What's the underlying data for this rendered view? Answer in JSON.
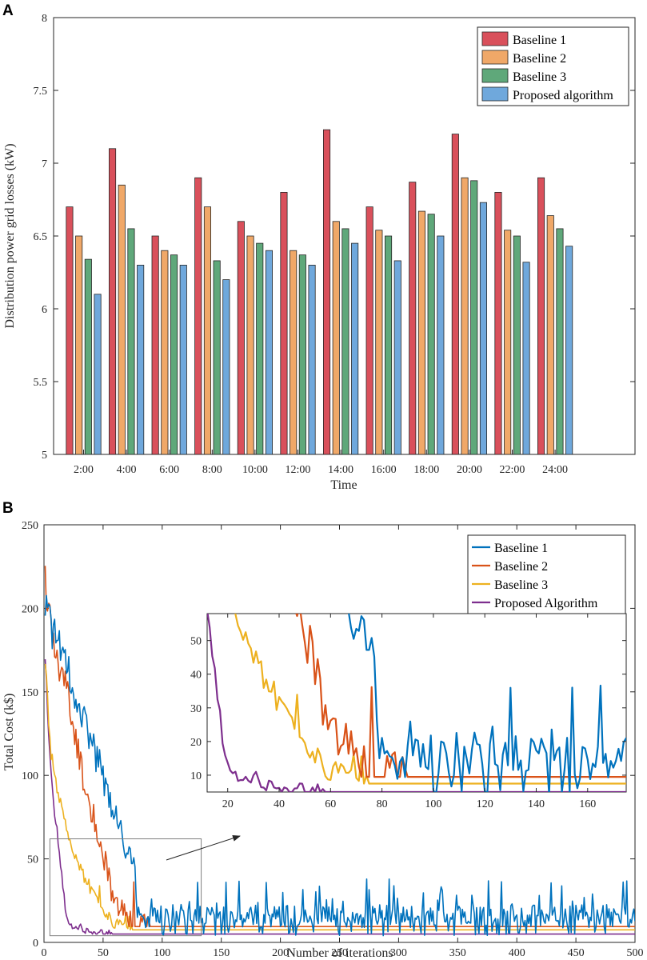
{
  "chart_data": [
    {
      "panel": "A",
      "type": "bar",
      "title": "",
      "xlabel": "Time",
      "ylabel": "Distribution power grid losses (kW)",
      "ylim": [
        5,
        8
      ],
      "yticks": [
        5,
        5.5,
        6,
        6.5,
        7,
        7.5,
        8
      ],
      "ytick_labels": [
        "5",
        "5.5",
        "6",
        "6.5",
        "7",
        "7.5",
        "8"
      ],
      "categories": [
        "2:00",
        "4:00",
        "6:00",
        "8:00",
        "10:00",
        "12:00",
        "14:00",
        "16:00",
        "18:00",
        "20:00",
        "22:00",
        "24:00"
      ],
      "legend_position": "top-right",
      "series": [
        {
          "name": "Baseline 1",
          "color": "#d9505b",
          "values": [
            6.7,
            7.1,
            6.5,
            6.9,
            6.6,
            6.8,
            7.23,
            6.7,
            6.87,
            7.2,
            6.8,
            6.9
          ]
        },
        {
          "name": "Baseline 2",
          "color": "#f0a868",
          "values": [
            6.5,
            6.85,
            6.4,
            6.7,
            6.5,
            6.4,
            6.6,
            6.54,
            6.67,
            6.9,
            6.54,
            6.64
          ]
        },
        {
          "name": "Baseline 3",
          "color": "#5fa87a",
          "values": [
            6.34,
            6.55,
            6.37,
            6.33,
            6.45,
            6.37,
            6.55,
            6.5,
            6.65,
            6.88,
            6.5,
            6.55
          ]
        },
        {
          "name": "Proposed algorithm",
          "color": "#6fa8dc",
          "values": [
            6.1,
            6.3,
            6.3,
            6.2,
            6.4,
            6.3,
            6.45,
            6.33,
            6.5,
            6.73,
            6.32,
            6.43
          ]
        }
      ]
    },
    {
      "panel": "B",
      "type": "line",
      "title": "",
      "xlabel": "Number of iterations",
      "ylabel": "Total Cost (k$)",
      "xlim": [
        0,
        500
      ],
      "ylim": [
        0,
        250
      ],
      "xticks": [
        0,
        50,
        100,
        150,
        200,
        250,
        300,
        350,
        400,
        450,
        500
      ],
      "yticks": [
        0,
        50,
        100,
        150,
        200,
        250
      ],
      "legend_position": "top-right",
      "series": [
        {
          "name": "Baseline 1",
          "color": "#0072bd",
          "anchors": [
            [
              1,
              200
            ],
            [
              10,
              185
            ],
            [
              20,
              165
            ],
            [
              30,
              140
            ],
            [
              40,
              120
            ],
            [
              50,
              100
            ],
            [
              60,
              75
            ],
            [
              70,
              55
            ],
            [
              75,
              50
            ],
            [
              78,
              30
            ],
            [
              80,
              15
            ]
          ],
          "noise_level": 14,
          "plateau_level": 15,
          "plateau_min": 4,
          "plateau_max": 38
        },
        {
          "name": "Baseline 2",
          "color": "#d95319",
          "anchors": [
            [
              1,
              200
            ],
            [
              5,
              195
            ],
            [
              10,
              170
            ],
            [
              20,
              150
            ],
            [
              30,
              110
            ],
            [
              40,
              80
            ],
            [
              50,
              52
            ],
            [
              60,
              25
            ],
            [
              70,
              13
            ],
            [
              80,
              11
            ],
            [
              90,
              10
            ]
          ],
          "noise_level": 12,
          "plateau_level": 9.5
        },
        {
          "name": "Baseline 3",
          "color": "#edb120",
          "anchors": [
            [
              1,
              170
            ],
            [
              5,
              120
            ],
            [
              10,
              95
            ],
            [
              20,
              65
            ],
            [
              30,
              45
            ],
            [
              40,
              30
            ],
            [
              50,
              18
            ],
            [
              60,
              11
            ],
            [
              70,
              9
            ],
            [
              75,
              7.5
            ]
          ],
          "noise_level": 5,
          "plateau_level": 7.5
        },
        {
          "name": "Proposed Algorithm",
          "color": "#7e2f8e",
          "anchors": [
            [
              1,
              170
            ],
            [
              5,
              110
            ],
            [
              10,
              70
            ],
            [
              15,
              40
            ],
            [
              18,
              20
            ],
            [
              20,
              12
            ],
            [
              40,
              7
            ],
            [
              50,
              6
            ],
            [
              57,
              5
            ]
          ],
          "noise_level": 4,
          "plateau_level": 5
        }
      ],
      "inset": {
        "xlim": [
          12,
          175
        ],
        "ylim": [
          5,
          58
        ],
        "xticks": [
          20,
          40,
          60,
          80,
          100,
          120,
          140,
          160
        ],
        "yticks": [
          10,
          20,
          30,
          40,
          50
        ],
        "source_box_x": [
          5,
          133
        ],
        "source_box_y": [
          4,
          62
        ]
      }
    }
  ]
}
